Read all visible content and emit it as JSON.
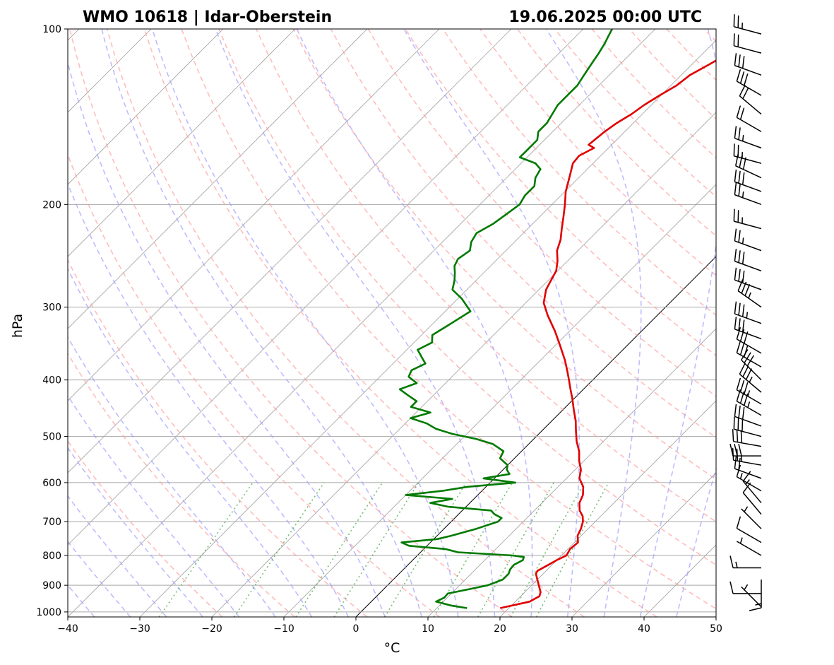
{
  "chart_data": {
    "type": "skew-t",
    "title_left": "WMO 10618 | Idar-Oberstein",
    "title_right": "19.06.2025 00:00 UTC",
    "xlabel": "°C",
    "ylabel": "hPa",
    "xlim": [
      -40,
      50
    ],
    "ylim": [
      1020,
      100
    ],
    "x_ticks": [
      -40,
      -30,
      -20,
      -10,
      0,
      10,
      20,
      30,
      40,
      50
    ],
    "x_tick_labels": [
      "−40",
      "−30",
      "−20",
      "−10",
      "0",
      "10",
      "20",
      "30",
      "40",
      "50"
    ],
    "y_ticks": [
      1000,
      900,
      800,
      700,
      600,
      500,
      400,
      300,
      200,
      100
    ],
    "y_tick_labels": [
      "1000",
      "900",
      "800",
      "700",
      "600",
      "500",
      "400",
      "300",
      "200",
      "100"
    ],
    "grid": true,
    "colors": {
      "temperature": "#e00000",
      "dewpoint": "#007a00",
      "dry_adiabat": "#ff9a9a",
      "moist_adiabat": "#9a9aff",
      "mixing_ratio": "#44aa44",
      "isotherm": "#888888",
      "zero_isotherm": "#000000"
    },
    "series": [
      {
        "name": "Temperature",
        "pressure": [
          985,
          960,
          940,
          925,
          900,
          880,
          860,
          850,
          830,
          815,
          800,
          780,
          760,
          740,
          720,
          700,
          685,
          670,
          650,
          630,
          610,
          590,
          570,
          550,
          530,
          510,
          490,
          470,
          450,
          430,
          415,
          400,
          385,
          370,
          350,
          330,
          310,
          295,
          280,
          270,
          260,
          250,
          240,
          230,
          220,
          210,
          200,
          190,
          180,
          170,
          165,
          160,
          158,
          150,
          145,
          140,
          135,
          130,
          125,
          120,
          115,
          110,
          106,
          103,
          100
        ],
        "values": [
          18.8,
          22.0,
          22.6,
          22.2,
          21.0,
          20.0,
          19.0,
          18.8,
          19.5,
          20.0,
          20.7,
          20.3,
          20.5,
          19.5,
          19.0,
          18.3,
          17.5,
          16.3,
          15.2,
          14.6,
          13.5,
          11.8,
          10.8,
          9.3,
          8.0,
          6.3,
          4.8,
          3.3,
          1.5,
          -0.3,
          -1.8,
          -3.3,
          -4.9,
          -6.6,
          -9.2,
          -12.0,
          -15.2,
          -17.5,
          -19.0,
          -19.6,
          -20.2,
          -21.4,
          -22.9,
          -23.9,
          -25.3,
          -26.7,
          -28.2,
          -29.9,
          -31.3,
          -32.8,
          -33.0,
          -32.0,
          -33.2,
          -32.8,
          -32.3,
          -31.5,
          -31.0,
          -30.2,
          -29.2,
          -28.8,
          -27.6,
          -26.4,
          -25.4,
          -24.6,
          -24.6
        ]
      },
      {
        "name": "Dewpoint",
        "pressure": [
          985,
          975,
          960,
          945,
          930,
          915,
          900,
          880,
          860,
          845,
          830,
          815,
          805,
          800,
          790,
          780,
          770,
          760,
          750,
          740,
          720,
          700,
          690,
          680,
          670,
          660,
          650,
          640,
          630,
          620,
          610,
          600,
          590,
          580,
          570,
          560,
          545,
          530,
          515,
          505,
          495,
          485,
          475,
          465,
          455,
          445,
          435,
          425,
          415,
          405,
          395,
          385,
          375,
          365,
          355,
          345,
          335,
          320,
          305,
          290,
          280,
          270,
          262,
          255,
          248,
          240,
          232,
          224,
          216,
          208,
          200,
          193,
          186,
          180,
          174,
          170,
          166,
          160,
          155,
          150,
          145,
          140,
          135,
          130,
          125,
          120,
          115,
          110,
          106,
          103,
          100
        ],
        "values": [
          14.2,
          11.6,
          9.0,
          9.6,
          9.5,
          11.7,
          13.9,
          15.2,
          15.2,
          14.8,
          14.7,
          15.3,
          15.0,
          13.2,
          5.2,
          3.0,
          -2.5,
          -4.0,
          0.5,
          2.0,
          4.5,
          6.5,
          6.5,
          5.0,
          4.0,
          -2.5,
          -5.5,
          -3.0,
          -10.0,
          -5.5,
          -2.5,
          3.5,
          -1.5,
          1.5,
          0.5,
          0.0,
          -2.0,
          -2.5,
          -5.0,
          -8.0,
          -12.0,
          -15.0,
          -17.0,
          -20.0,
          -18.0,
          -21.5,
          -21.5,
          -23.5,
          -25.5,
          -24.0,
          -26.0,
          -26.5,
          -25.5,
          -27.0,
          -28.5,
          -27.5,
          -28.5,
          -27.5,
          -26.5,
          -29.5,
          -32.0,
          -33.0,
          -34.0,
          -35.0,
          -35.5,
          -35.0,
          -36.0,
          -36.5,
          -35.5,
          -35.0,
          -34.5,
          -35.0,
          -35.0,
          -36.0,
          -36.5,
          -38.0,
          -41.0,
          -41.0,
          -41.0,
          -42.0,
          -42.0,
          -42.5,
          -43.0,
          -43.0,
          -43.0,
          -43.5,
          -44.0,
          -44.5,
          -45.0,
          -45.5,
          -46.0
        ]
      }
    ],
    "wind_barbs": {
      "pressure": [
        980,
        930,
        880,
        840,
        800,
        760,
        720,
        680,
        650,
        620,
        590,
        560,
        540,
        520,
        500,
        480,
        460,
        440,
        420,
        400,
        380,
        360,
        340,
        320,
        300,
        280,
        260,
        240,
        220,
        200,
        190,
        180,
        170,
        160,
        150,
        140,
        130,
        120,
        110,
        102
      ],
      "speed_kt": [
        5,
        10,
        15,
        15,
        5,
        10,
        5,
        10,
        15,
        15,
        20,
        25,
        30,
        30,
        30,
        30,
        35,
        35,
        35,
        30,
        30,
        30,
        30,
        35,
        35,
        30,
        30,
        25,
        25,
        25,
        30,
        30,
        25,
        25,
        20,
        20,
        30,
        30,
        20,
        25
      ],
      "direction_deg": [
        315,
        270,
        180,
        270,
        300,
        300,
        315,
        320,
        320,
        300,
        290,
        280,
        270,
        280,
        285,
        290,
        300,
        300,
        310,
        315,
        300,
        300,
        290,
        290,
        305,
        290,
        290,
        290,
        285,
        290,
        290,
        295,
        285,
        290,
        300,
        310,
        300,
        290,
        285,
        285
      ]
    }
  }
}
